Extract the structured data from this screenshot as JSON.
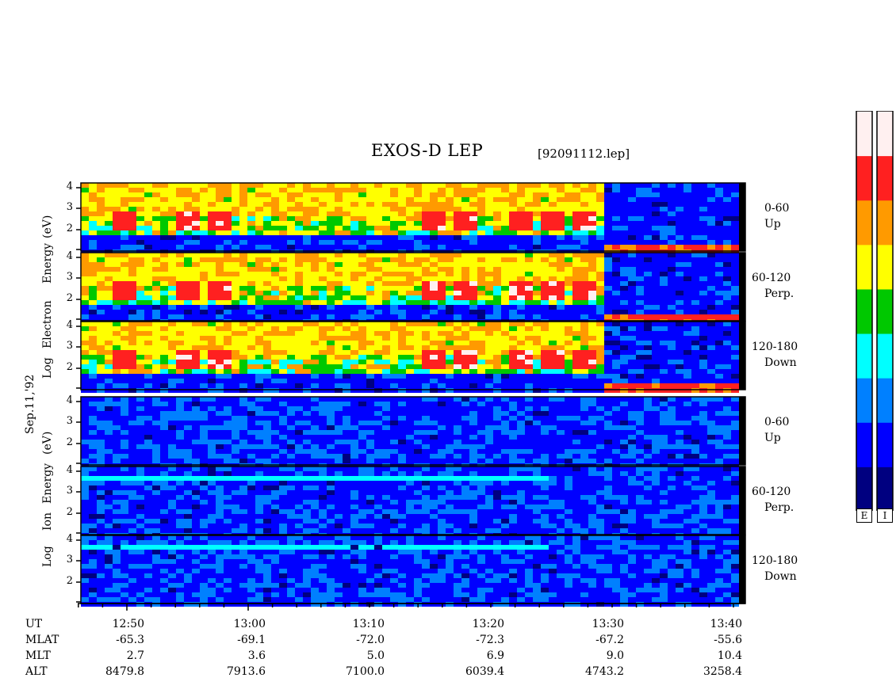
{
  "title": "EXOS-D LEP",
  "file": "[92091112.lep]",
  "date_label": "Sep.11,'92",
  "electron_axis": {
    "parts": [
      "Log",
      "Electron",
      "Energy",
      "(eV)"
    ]
  },
  "ion_axis": {
    "parts": [
      "Log",
      "Ion",
      "Energy",
      "(eV)"
    ]
  },
  "panels": [
    {
      "group": "electron",
      "angle": "0-60",
      "dir": "Up"
    },
    {
      "group": "electron",
      "angle": "60-120",
      "dir": "Perp."
    },
    {
      "group": "electron",
      "angle": "120-180",
      "dir": "Down"
    },
    {
      "group": "ion",
      "angle": "0-60",
      "dir": "Up"
    },
    {
      "group": "ion",
      "angle": "60-120",
      "dir": "Perp."
    },
    {
      "group": "ion",
      "angle": "120-180",
      "dir": "Down"
    }
  ],
  "y_ticks": [
    "4",
    "3",
    "2"
  ],
  "colorbar": {
    "labels": [
      "E",
      "I"
    ],
    "colors": [
      "#fff0f0",
      "#ff2020",
      "#ff9a00",
      "#ffff00",
      "#00c800",
      "#00ffff",
      "#0080ff",
      "#0000ff",
      "#000080"
    ]
  },
  "orbit": {
    "headers": [
      "UT",
      "MLAT",
      "MLT",
      "ALT"
    ],
    "columns": [
      {
        "UT": "12:50",
        "MLAT": "-65.3",
        "MLT": "2.7",
        "ALT": "8479.8"
      },
      {
        "UT": "13:00",
        "MLAT": "-69.1",
        "MLT": "3.6",
        "ALT": "7913.6"
      },
      {
        "UT": "13:10",
        "MLAT": "-72.0",
        "MLT": "5.0",
        "ALT": "7100.0"
      },
      {
        "UT": "13:20",
        "MLAT": "-72.3",
        "MLT": "6.9",
        "ALT": "6039.4"
      },
      {
        "UT": "13:30",
        "MLAT": "-67.2",
        "MLT": "9.0",
        "ALT": "4743.2"
      },
      {
        "UT": "13:40",
        "MLAT": "-55.6",
        "MLT": "10.4",
        "ALT": "3258.4"
      }
    ]
  },
  "chart_data": {
    "type": "heatmap",
    "title": "EXOS-D LEP",
    "xlabel": "UT",
    "ylabel": "Log Energy (eV)",
    "x_ticks": [
      "12:50",
      "13:00",
      "13:10",
      "13:20",
      "13:30",
      "13:40"
    ],
    "y_ticks": [
      2,
      3,
      4
    ],
    "ylim": [
      1,
      4.1
    ],
    "series": [
      {
        "name": "Electron 0-60 Up"
      },
      {
        "name": "Electron 60-120 Perp."
      },
      {
        "name": "Electron 120-180 Down"
      },
      {
        "name": "Ion 0-60 Up"
      },
      {
        "name": "Ion 60-120 Perp."
      },
      {
        "name": "Ion 120-180 Down"
      }
    ]
  }
}
